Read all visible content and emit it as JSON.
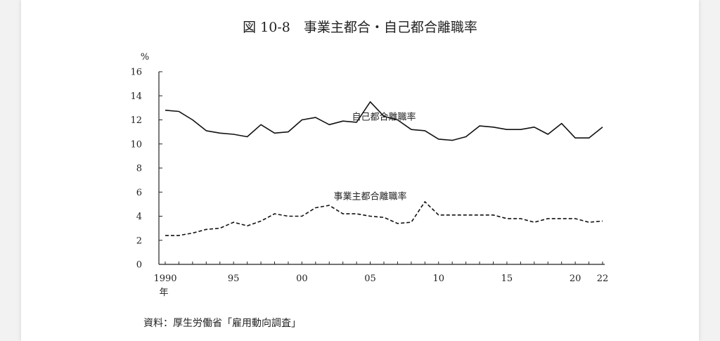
{
  "chart_data": {
    "type": "line",
    "title": "図 10-8　事業主都合・自己都合離職率",
    "ylabel": "%",
    "ylim": [
      0,
      16
    ],
    "yticks": [
      0,
      2,
      4,
      6,
      8,
      10,
      12,
      14,
      16
    ],
    "x": [
      1990,
      1991,
      1992,
      1993,
      1994,
      1995,
      1996,
      1997,
      1998,
      1999,
      2000,
      2001,
      2002,
      2003,
      2004,
      2005,
      2006,
      2007,
      2008,
      2009,
      2010,
      2011,
      2012,
      2013,
      2014,
      2015,
      2016,
      2017,
      2018,
      2019,
      2020,
      2021,
      2022
    ],
    "xticks": [
      {
        "x": 1990,
        "label": "1990"
      },
      {
        "x": 1995,
        "label": "95"
      },
      {
        "x": 2000,
        "label": "00"
      },
      {
        "x": 2005,
        "label": "05"
      },
      {
        "x": 2010,
        "label": "10"
      },
      {
        "x": 2015,
        "label": "15"
      },
      {
        "x": 2020,
        "label": "20"
      },
      {
        "x": 2022,
        "label": "22"
      }
    ],
    "xunit": "年",
    "grid": false,
    "series": [
      {
        "name": "自己都合離職率",
        "style": "solid",
        "values": [
          12.8,
          12.7,
          12.0,
          11.1,
          10.9,
          10.8,
          10.6,
          11.6,
          10.9,
          11.0,
          12.0,
          12.2,
          11.6,
          11.9,
          11.8,
          13.5,
          12.3,
          12.0,
          11.2,
          11.1,
          10.4,
          10.3,
          10.6,
          11.5,
          11.4,
          11.2,
          11.2,
          11.4,
          10.8,
          11.7,
          10.5,
          10.5,
          11.4
        ]
      },
      {
        "name": "事業主都合離職率",
        "style": "dashed",
        "values": [
          2.4,
          2.4,
          2.6,
          2.9,
          3.0,
          3.5,
          3.2,
          3.6,
          4.2,
          4.0,
          4.0,
          4.7,
          4.9,
          4.2,
          4.2,
          4.0,
          3.9,
          3.4,
          3.5,
          5.2,
          4.1,
          4.1,
          4.1,
          4.1,
          4.1,
          3.8,
          3.8,
          3.5,
          3.8,
          3.8,
          3.8,
          3.5,
          3.6
        ]
      }
    ],
    "colors": {
      "line": "#111111",
      "axis": "#222222"
    }
  },
  "source": "資料：厚生労働省「雇用動向調査」"
}
